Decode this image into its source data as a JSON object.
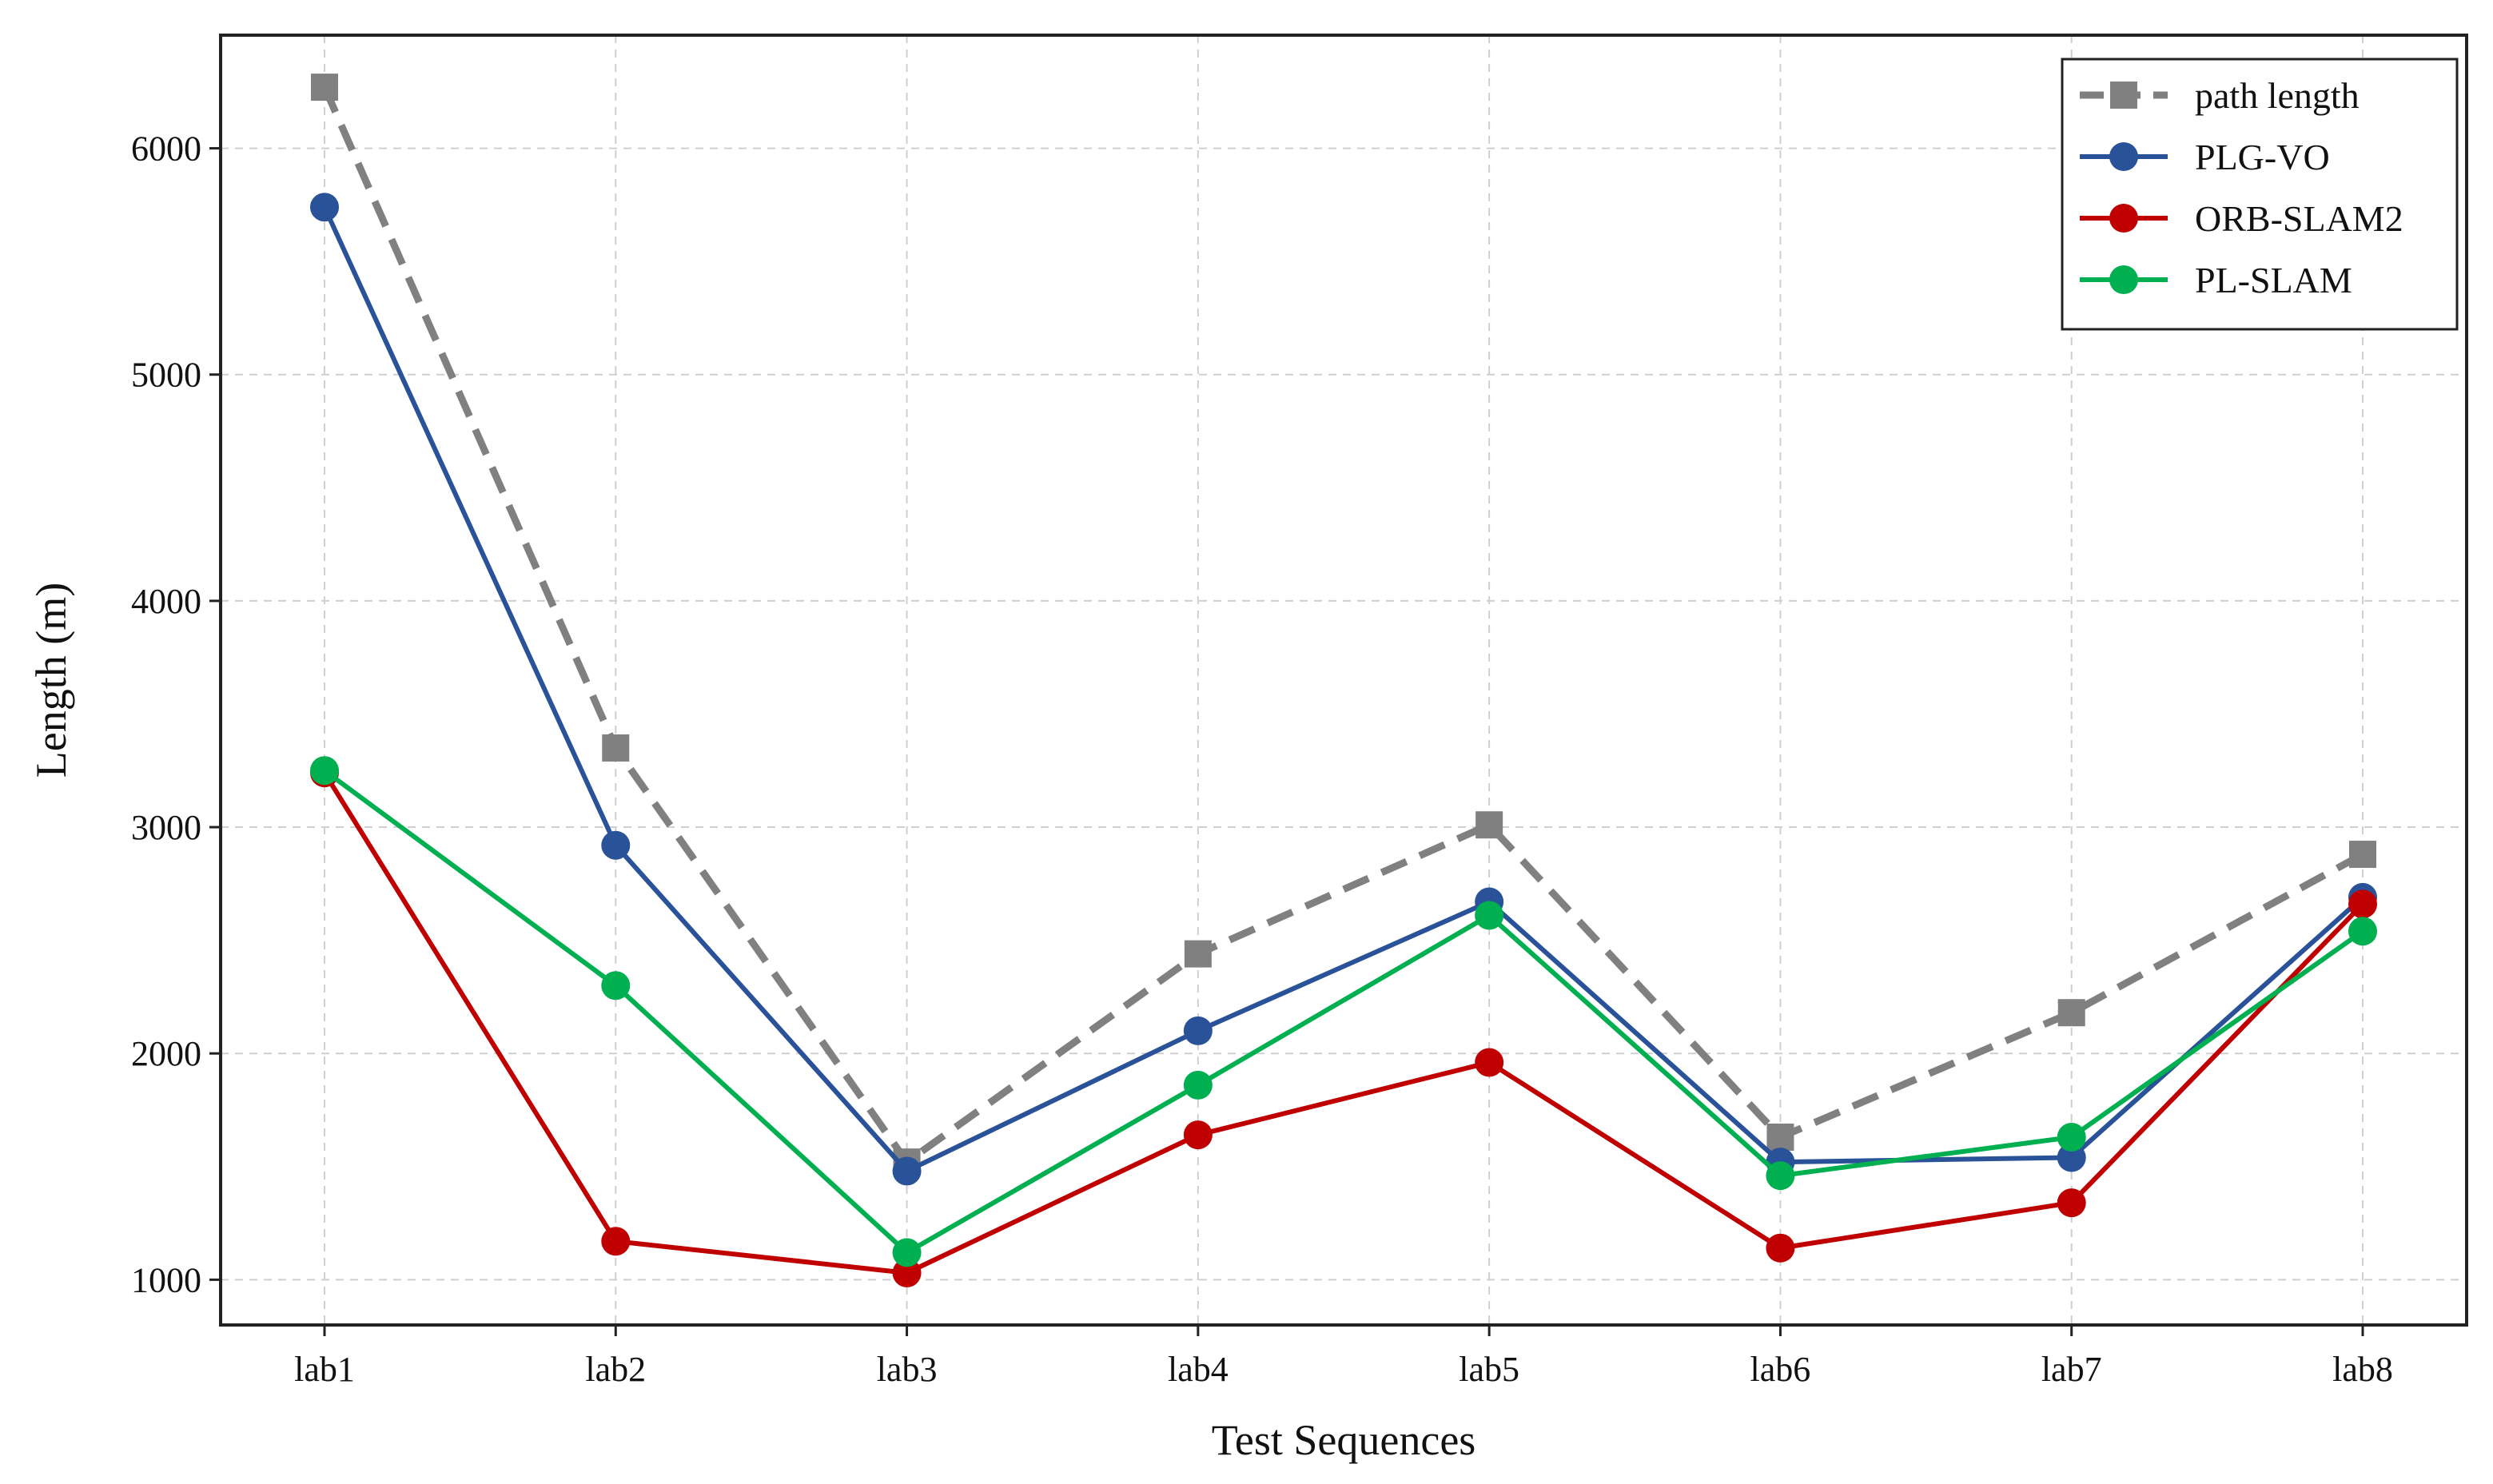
{
  "chart_data": {
    "type": "line",
    "xlabel": "Test Sequences",
    "ylabel": "Length (m)",
    "categories": [
      "lab1",
      "lab2",
      "lab3",
      "lab4",
      "lab5",
      "lab6",
      "lab7",
      "lab8"
    ],
    "ylim": [
      800,
      6500
    ],
    "yticks": [
      1000,
      2000,
      3000,
      4000,
      5000,
      6000
    ],
    "grid": true,
    "legend_position": "top-right",
    "series": [
      {
        "name": "path length",
        "color": "#808080",
        "marker": "square",
        "dashed": true,
        "values": [
          6270,
          3350,
          1520,
          2440,
          3010,
          1630,
          2180,
          2880
        ]
      },
      {
        "name": "PLG-VO",
        "color": "#2a5298",
        "marker": "circle",
        "dashed": false,
        "values": [
          5740,
          2920,
          1480,
          2100,
          2670,
          1520,
          1540,
          2690
        ]
      },
      {
        "name": "ORB-SLAM2",
        "color": "#c00000",
        "marker": "circle",
        "dashed": false,
        "values": [
          3240,
          1170,
          1030,
          1640,
          1960,
          1140,
          1340,
          2660
        ]
      },
      {
        "name": "PL-SLAM",
        "color": "#00b050",
        "marker": "circle",
        "dashed": false,
        "values": [
          3250,
          2300,
          1120,
          1860,
          2610,
          1460,
          1630,
          2540
        ]
      }
    ]
  }
}
